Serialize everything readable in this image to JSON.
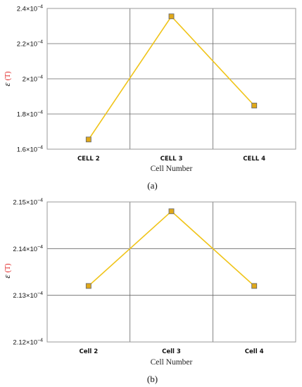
{
  "chart_data": [
    {
      "type": "line",
      "caption": "(a)",
      "xlabel": "Cell Number",
      "ylabel_symbol": "ε",
      "ylabel_unit": "(T)",
      "categories": [
        "CELL 2",
        "CELL 3",
        "CELL 4"
      ],
      "series": [
        {
          "values": [
            0.0001655,
            0.0002355,
            0.0001848
          ]
        }
      ],
      "ylim": [
        0.00016,
        0.00024
      ],
      "yticks": [
        {
          "value": 0.00016,
          "mantissa": "1.6",
          "exp": "−4"
        },
        {
          "value": 0.00018,
          "mantissa": "1.8",
          "exp": "−4"
        },
        {
          "value": 0.0002,
          "mantissa": "2",
          "exp": "−4"
        },
        {
          "value": 0.00022,
          "mantissa": "2.2",
          "exp": "−4"
        },
        {
          "value": 0.00024,
          "mantissa": "2.4",
          "exp": "−4"
        }
      ],
      "ygrid": [
        0.00018,
        0.0002,
        0.00022
      ],
      "grid": true,
      "line_color": "#f0c419",
      "marker_color": "#e0a818"
    },
    {
      "type": "line",
      "caption": "(b)",
      "xlabel": "Cell Number",
      "ylabel_symbol": "ε",
      "ylabel_unit": "(T)",
      "categories": [
        "Cell 2",
        "Cell 3",
        "Cell 4"
      ],
      "series": [
        {
          "values": [
            0.0002132,
            0.0002148,
            0.0002132
          ]
        }
      ],
      "ylim": [
        0.000212,
        0.000215
      ],
      "yticks": [
        {
          "value": 0.000212,
          "mantissa": "2.12",
          "exp": "−4"
        },
        {
          "value": 0.000213,
          "mantissa": "2.13",
          "exp": "−4"
        },
        {
          "value": 0.000214,
          "mantissa": "2.14",
          "exp": "−4"
        },
        {
          "value": 0.000215,
          "mantissa": "2.15",
          "exp": "−4"
        }
      ],
      "ygrid": [
        0.000213,
        0.000214
      ],
      "grid": true,
      "line_color": "#f0c419",
      "marker_color": "#e0a818"
    }
  ]
}
